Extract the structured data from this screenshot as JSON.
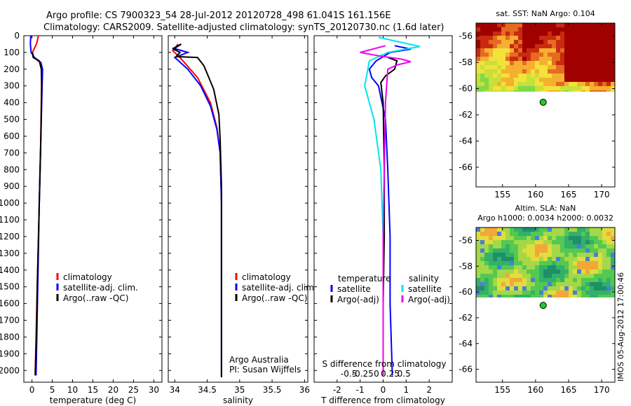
{
  "header": {
    "line1": "Argo profile: CS 7900323_54 28-Jul-2012 20120728_498 61.041S 161.156E",
    "line2": "Climatology: CARS2009. Satellite-adjusted climatology: synTS_20120730.nc (1.6d later)"
  },
  "side_label": "IMOS 05-Aug-2012 17:00:46",
  "colors": {
    "climatology": "#ff0000",
    "satellite": "#0000ff",
    "argo": "#000000",
    "sal_satellite": "#00e5ee",
    "sal_argo": "#ee00ee",
    "sla_point": "#22cc22"
  },
  "chart_data": [
    {
      "type": "line",
      "id": "temperature",
      "xlabel": "temperature (deg C)",
      "xlim": [
        -2,
        32
      ],
      "xticks": [
        0,
        5,
        10,
        15,
        20,
        25,
        30
      ],
      "ylim": [
        2070,
        0
      ],
      "yticks": [
        0,
        100,
        200,
        300,
        400,
        500,
        600,
        700,
        800,
        900,
        1000,
        1100,
        1200,
        1300,
        1400,
        1500,
        1600,
        1700,
        1800,
        1900,
        2000
      ],
      "legend": [
        "climatology",
        "satellite-adj. clim.",
        "Argo(..raw -QC)"
      ],
      "series": [
        {
          "name": "climatology",
          "color": "#ff0000",
          "points": [
            [
              1.6,
              0
            ],
            [
              1.1,
              50
            ],
            [
              0.1,
              100
            ],
            [
              0.5,
              130
            ],
            [
              2.0,
              160
            ],
            [
              2.4,
              200
            ],
            [
              2.3,
              400
            ],
            [
              2.1,
              700
            ],
            [
              1.8,
              1000
            ],
            [
              1.4,
              1400
            ],
            [
              1.0,
              1800
            ],
            [
              0.8,
              2020
            ]
          ]
        },
        {
          "name": "satellite-adj. clim.",
          "color": "#0000ff",
          "points": [
            [
              -0.3,
              0
            ],
            [
              -0.4,
              50
            ],
            [
              -0.2,
              100
            ],
            [
              0.6,
              130
            ],
            [
              2.2,
              160
            ],
            [
              2.6,
              200
            ],
            [
              2.4,
              400
            ],
            [
              2.1,
              700
            ],
            [
              1.8,
              1000
            ],
            [
              1.5,
              1400
            ],
            [
              1.2,
              1800
            ],
            [
              1.0,
              2030
            ]
          ]
        },
        {
          "name": "Argo(..raw -QC)",
          "color": "#000000",
          "points": [
            [
              0.1,
              100
            ],
            [
              0.3,
              130
            ],
            [
              1.8,
              150
            ],
            [
              2.3,
              200
            ],
            [
              2.4,
              300
            ],
            [
              2.2,
              600
            ],
            [
              1.9,
              900
            ],
            [
              1.6,
              1200
            ],
            [
              1.3,
              1500
            ],
            [
              1.1,
              1800
            ],
            [
              0.8,
              2030
            ]
          ]
        }
      ]
    },
    {
      "type": "line",
      "id": "salinity",
      "xlabel": "salinity",
      "xlim": [
        33.9,
        36.05
      ],
      "xticks": [
        34,
        34.5,
        35,
        35.5,
        36
      ],
      "ylim": [
        2070,
        0
      ],
      "yticks": [
        0,
        100,
        200,
        300,
        400,
        500,
        600,
        700,
        800,
        900,
        1000,
        1100,
        1200,
        1300,
        1400,
        1500,
        1600,
        1700,
        1800,
        1900,
        2000
      ],
      "legend": [
        "climatology",
        "satellite-adj. clim.",
        "Argo(..raw -QC)"
      ],
      "annotations": [
        "Argo Australia",
        "PI: Susan Wijffels"
      ],
      "series": [
        {
          "name": "climatology",
          "color": "#ff0000",
          "points": [
            [
              34.05,
              50
            ],
            [
              33.97,
              90
            ],
            [
              34.08,
              130
            ],
            [
              34.35,
              250
            ],
            [
              34.55,
              400
            ],
            [
              34.65,
              550
            ],
            [
              34.7,
              700
            ],
            [
              34.72,
              1000
            ],
            [
              34.72,
              1500
            ],
            [
              34.72,
              2040
            ]
          ]
        },
        {
          "name": "satellite-adj. clim.",
          "color": "#0000ff",
          "points": [
            [
              34.1,
              50
            ],
            [
              33.98,
              75
            ],
            [
              34.2,
              100
            ],
            [
              34.0,
              130
            ],
            [
              34.2,
              200
            ],
            [
              34.4,
              300
            ],
            [
              34.55,
              420
            ],
            [
              34.65,
              560
            ],
            [
              34.7,
              700
            ],
            [
              34.72,
              1000
            ],
            [
              34.72,
              1500
            ],
            [
              34.72,
              2040
            ]
          ]
        },
        {
          "name": "Argo(..raw -QC)",
          "color": "#000000",
          "points": [
            [
              34.1,
              50
            ],
            [
              33.98,
              80
            ],
            [
              34.08,
              100
            ],
            [
              34.02,
              125
            ],
            [
              34.35,
              130
            ],
            [
              34.45,
              180
            ],
            [
              34.6,
              320
            ],
            [
              34.68,
              470
            ],
            [
              34.7,
              620
            ],
            [
              34.72,
              900
            ],
            [
              34.72,
              1400
            ],
            [
              34.72,
              2040
            ]
          ]
        }
      ]
    },
    {
      "type": "line",
      "id": "difference",
      "xlabel": "T difference from climatology",
      "xlabel2": "S difference from climatology",
      "xlim": [
        -3,
        3
      ],
      "xticks": [
        -2,
        -1,
        0,
        1,
        2
      ],
      "xticks2": [
        -0.5,
        -0.25,
        0,
        0.25,
        0.5
      ],
      "ylim": [
        2070,
        0
      ],
      "yticks": [
        0,
        100,
        200,
        300,
        400,
        500,
        600,
        700,
        800,
        900,
        1000,
        1100,
        1200,
        1300,
        1400,
        1500,
        1600,
        1700,
        1800,
        1900,
        2000
      ],
      "legend_title_t": "temperature",
      "legend_title_s": "salinity",
      "legend": [
        "satellite",
        "Argo(-adj)",
        "satellite",
        "Argo(-adj)"
      ],
      "series": [
        {
          "name": "satellite",
          "color": "#0000ff",
          "points": [
            [
              0.5,
              60
            ],
            [
              1.2,
              80
            ],
            [
              0.3,
              100
            ],
            [
              -0.3,
              150
            ],
            [
              -0.6,
              200
            ],
            [
              -0.5,
              250
            ],
            [
              -0.2,
              300
            ],
            [
              0.1,
              500
            ],
            [
              0.2,
              800
            ],
            [
              0.3,
              1200
            ],
            [
              0.3,
              1600
            ],
            [
              0.4,
              2030
            ]
          ]
        },
        {
          "name": "Argo(-adj)",
          "color": "#000000",
          "points": [
            [
              0.2,
              130
            ],
            [
              0.6,
              150
            ],
            [
              0.5,
              200
            ],
            [
              0.1,
              240
            ],
            [
              -0.1,
              280
            ],
            [
              0.0,
              400
            ],
            [
              0.05,
              800
            ],
            [
              0.05,
              1200
            ],
            [
              0.0,
              1600
            ],
            [
              0.0,
              2030
            ]
          ]
        },
        {
          "name": "satellite",
          "color": "#00e5ee",
          "points": [
            [
              -0.2,
              10
            ],
            [
              0.8,
              40
            ],
            [
              1.6,
              65
            ],
            [
              0.2,
              100
            ],
            [
              -0.6,
              150
            ],
            [
              -0.8,
              300
            ],
            [
              -0.4,
              500
            ],
            [
              -0.1,
              800
            ],
            [
              0.0,
              1200
            ],
            [
              0.0,
              1600
            ],
            [
              0.0,
              2030
            ]
          ]
        },
        {
          "name": "Argo(-adj)",
          "color": "#ee00ee",
          "points": [
            [
              0.1,
              60
            ],
            [
              -1.0,
              100
            ],
            [
              -0.2,
              120
            ],
            [
              0.8,
              140
            ],
            [
              1.2,
              155
            ],
            [
              0.6,
              175
            ],
            [
              0.2,
              200
            ],
            [
              0.1,
              400
            ],
            [
              0.05,
              800
            ],
            [
              0.0,
              1200
            ],
            [
              0.0,
              2030
            ]
          ]
        }
      ]
    },
    {
      "type": "heatmap",
      "id": "sst-map",
      "title": "sat. SST: NaN Argo: 0.104",
      "xlim": [
        151,
        172
      ],
      "ylim": [
        -67.5,
        -55
      ],
      "xticks": [
        155,
        160,
        165,
        170
      ],
      "yticks": [
        -56,
        -58,
        -60,
        -62,
        -64,
        -66
      ],
      "data_extent_lat": [
        -60.2,
        -55
      ],
      "argo_point": [
        161.156,
        -61.041
      ],
      "palette": [
        "#7fd94a",
        "#c8e03a",
        "#f2e23a",
        "#f5b030",
        "#e56b1f",
        "#c92a10",
        "#a00000"
      ]
    },
    {
      "type": "heatmap",
      "id": "sla-map",
      "title": "Altim. SLA: NaN",
      "subtitle": "Argo h1000: 0.0034 h2000: 0.0032",
      "xlim": [
        151,
        172
      ],
      "ylim": [
        -67,
        -55
      ],
      "xticks": [
        155,
        160,
        165,
        170
      ],
      "yticks": [
        -56,
        -58,
        -60,
        -62,
        -64,
        -66
      ],
      "data_extent_lat": [
        -60.2,
        -55
      ],
      "argo_point": [
        161.156,
        -61.041
      ],
      "palette": [
        "#1f8f6a",
        "#33b06a",
        "#54c94f",
        "#a4d848",
        "#e0dd3e",
        "#f2a838",
        "#4a7fd8"
      ]
    }
  ]
}
